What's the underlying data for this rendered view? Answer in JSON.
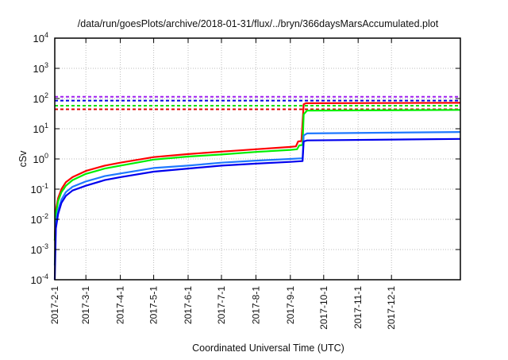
{
  "chart_data": {
    "type": "line",
    "title": "/data/run/goesPlots/archive/2018-01-31/flux/../bryn/366daysMarsAccumulated.plot",
    "xlabel": "Coordinated Universal Time (UTC)",
    "ylabel": "cSv",
    "yscale": "log",
    "ylim": [
      0.0001,
      10000
    ],
    "xlim_days": [
      0,
      365
    ],
    "x_origin": "2017-02-01",
    "grid": true,
    "yticks": [
      {
        "exp": "-4",
        "value": 0.0001
      },
      {
        "exp": "-3",
        "value": 0.001
      },
      {
        "exp": "-2",
        "value": 0.01
      },
      {
        "exp": "-1",
        "value": 0.1
      },
      {
        "exp": "0",
        "value": 1
      },
      {
        "exp": "1",
        "value": 10
      },
      {
        "exp": "2",
        "value": 100
      },
      {
        "exp": "3",
        "value": 1000
      },
      {
        "exp": "4",
        "value": 10000
      }
    ],
    "ytick_base": "10",
    "xticks": [
      {
        "label": "2017-2-1",
        "day": 0
      },
      {
        "label": "2017-3-1",
        "day": 28
      },
      {
        "label": "2017-4-1",
        "day": 59
      },
      {
        "label": "2017-5-1",
        "day": 89
      },
      {
        "label": "2017-6-1",
        "day": 120
      },
      {
        "label": "2017-7-1",
        "day": 150
      },
      {
        "label": "2017-8-1",
        "day": 181
      },
      {
        "label": "2017-9-1",
        "day": 212
      },
      {
        "label": "2017-10-1",
        "day": 242
      },
      {
        "label": "2017-11-1",
        "day": 273
      },
      {
        "label": "2017-12-1",
        "day": 303
      }
    ],
    "thresholds": [
      {
        "color": "#a020f0",
        "value": 115
      },
      {
        "color": "#0000e0",
        "value": 85
      },
      {
        "color": "#00e000",
        "value": 58
      },
      {
        "color": "#e00000",
        "value": 44
      }
    ],
    "series": [
      {
        "color": "#ff0000",
        "points": [
          [
            0,
            0.002
          ],
          [
            1,
            0.02
          ],
          [
            3,
            0.05
          ],
          [
            6,
            0.1
          ],
          [
            10,
            0.17
          ],
          [
            16,
            0.25
          ],
          [
            28,
            0.4
          ],
          [
            45,
            0.6
          ],
          [
            59,
            0.75
          ],
          [
            89,
            1.15
          ],
          [
            120,
            1.45
          ],
          [
            150,
            1.75
          ],
          [
            181,
            2.1
          ],
          [
            212,
            2.5
          ],
          [
            217,
            2.6
          ],
          [
            219,
            3.8
          ],
          [
            222,
            3.9
          ],
          [
            224,
            65
          ],
          [
            226,
            70
          ],
          [
            365,
            72
          ]
        ]
      },
      {
        "color": "#00ee00",
        "points": [
          [
            0,
            0.002
          ],
          [
            1,
            0.015
          ],
          [
            3,
            0.04
          ],
          [
            6,
            0.08
          ],
          [
            10,
            0.13
          ],
          [
            16,
            0.2
          ],
          [
            28,
            0.32
          ],
          [
            45,
            0.48
          ],
          [
            59,
            0.6
          ],
          [
            89,
            0.95
          ],
          [
            120,
            1.2
          ],
          [
            150,
            1.4
          ],
          [
            181,
            1.7
          ],
          [
            212,
            2.0
          ],
          [
            218,
            2.1
          ],
          [
            220,
            2.8
          ],
          [
            223,
            2.9
          ],
          [
            224,
            30
          ],
          [
            227,
            40
          ],
          [
            365,
            42
          ]
        ]
      },
      {
        "color": "#1e78ff",
        "points": [
          [
            0,
            0.0003
          ],
          [
            1,
            0.008
          ],
          [
            3,
            0.02
          ],
          [
            6,
            0.045
          ],
          [
            10,
            0.08
          ],
          [
            16,
            0.12
          ],
          [
            28,
            0.18
          ],
          [
            45,
            0.27
          ],
          [
            59,
            0.33
          ],
          [
            89,
            0.5
          ],
          [
            120,
            0.6
          ],
          [
            150,
            0.75
          ],
          [
            181,
            0.88
          ],
          [
            212,
            1.0
          ],
          [
            223,
            1.05
          ],
          [
            224,
            6.0
          ],
          [
            227,
            7.0
          ],
          [
            365,
            7.8
          ]
        ]
      },
      {
        "color": "#0000ee",
        "points": [
          [
            0,
            0.0001
          ],
          [
            1,
            0.005
          ],
          [
            3,
            0.015
          ],
          [
            6,
            0.035
          ],
          [
            10,
            0.06
          ],
          [
            16,
            0.09
          ],
          [
            28,
            0.13
          ],
          [
            45,
            0.2
          ],
          [
            59,
            0.25
          ],
          [
            89,
            0.38
          ],
          [
            120,
            0.48
          ],
          [
            150,
            0.6
          ],
          [
            181,
            0.7
          ],
          [
            212,
            0.8
          ],
          [
            223,
            0.85
          ],
          [
            224,
            3.8
          ],
          [
            227,
            4.1
          ],
          [
            365,
            4.6
          ]
        ]
      }
    ]
  }
}
